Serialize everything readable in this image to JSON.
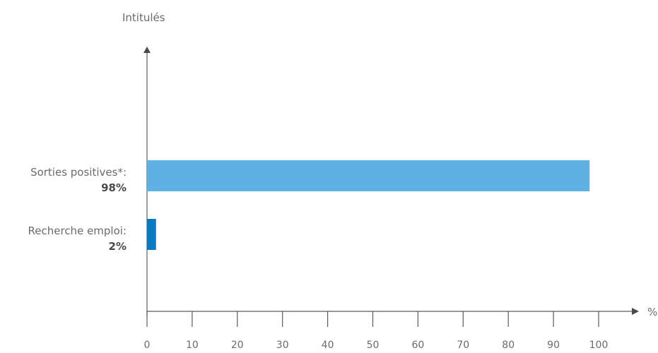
{
  "chart_data": {
    "type": "bar",
    "orientation": "horizontal",
    "ylabel": "Intitulés",
    "xlabel": "%",
    "xlim": [
      0,
      100
    ],
    "xticks": [
      "0",
      "10",
      "20",
      "30",
      "40",
      "50",
      "60",
      "70",
      "80",
      "90",
      "100"
    ],
    "categories": [
      {
        "name": "Sorties positives*:",
        "value_label": "98%",
        "value": 98,
        "color": "#5fb1e4"
      },
      {
        "name": "Recherche emploi:",
        "value_label": "2%",
        "value": 2,
        "color": "#0b79c2"
      }
    ],
    "grid": false,
    "legend": "none"
  }
}
